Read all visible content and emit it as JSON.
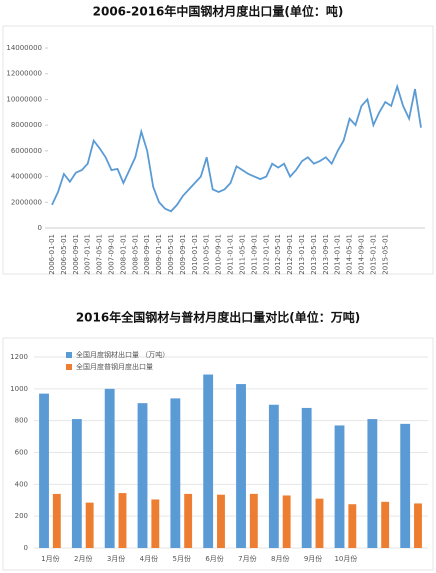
{
  "chart_data": [
    {
      "type": "line",
      "title": "2006-2016年中国钢材月度出口量(单位：吨)",
      "color": "#5b9bd5",
      "categories": [
        "2006-01-01",
        null,
        "2006-05-01",
        null,
        "2006-09-01",
        null,
        "2007-01-01",
        null,
        "2007-05-01",
        null,
        "2007-09-01",
        null,
        "2008-01-01",
        null,
        "2008-05-01",
        null,
        "2008-09-01",
        null,
        "2009-01-01",
        null,
        "2009-05-01",
        null,
        "2009-09-01",
        null,
        "2010-01-01",
        null,
        "2010-05-01",
        null,
        "2010-09-01",
        null,
        "2011-01-01",
        null,
        "2011-05-01",
        null,
        "2011-09-01",
        null,
        "2012-01-01",
        null,
        "2012-05-01",
        null,
        "2012-09-01",
        null,
        "2013-01-01",
        null,
        "2013-05-01",
        null,
        "2013-09-01",
        null,
        "2014-01-01",
        null,
        "2014-05-01",
        null,
        "2014-09-01",
        null,
        "2015-01-01",
        null,
        "2015-05-01",
        null,
        null,
        null,
        null,
        null,
        null
      ],
      "values": [
        1800000,
        2800000,
        4200000,
        3600000,
        4300000,
        4500000,
        5000000,
        6800000,
        6200000,
        5500000,
        4500000,
        4600000,
        3500000,
        4500000,
        5500000,
        7500000,
        6000000,
        3200000,
        2000000,
        1500000,
        1300000,
        1800000,
        2500000,
        3000000,
        3500000,
        4000000,
        5500000,
        3000000,
        2800000,
        3000000,
        3500000,
        4800000,
        4500000,
        4200000,
        4000000,
        3800000,
        4000000,
        5000000,
        4700000,
        5000000,
        4000000,
        4500000,
        5200000,
        5500000,
        5000000,
        5200000,
        5500000,
        5000000,
        6000000,
        6800000,
        8500000,
        8000000,
        9500000,
        10000000,
        8000000,
        9000000,
        9800000,
        9500000,
        11000000,
        9500000,
        8500000,
        10800000,
        7800000
      ],
      "ylim": [
        0,
        14000000
      ],
      "yticks": [
        0,
        2000000,
        4000000,
        6000000,
        8000000,
        10000000,
        12000000,
        14000000
      ],
      "grid": false
    },
    {
      "type": "bar",
      "title": "2016年全国钢材与普材月度出口量对比(单位：万吨)",
      "categories": [
        "1月份",
        "2月份",
        "3月份",
        "4月份",
        "5月份",
        "6月份",
        "7月份",
        "8月份",
        "9月份",
        "10月份",
        null,
        null
      ],
      "series": [
        {
          "name": "全国月度钢材出口量 （万吨）",
          "color": "#5b9bd5",
          "values": [
            970,
            810,
            1000,
            910,
            940,
            1090,
            1030,
            900,
            880,
            770,
            810,
            780
          ]
        },
        {
          "name": "全国月度普钢月度出口量",
          "color": "#ed7d31",
          "values": [
            340,
            285,
            345,
            305,
            340,
            335,
            340,
            330,
            310,
            275,
            290,
            280
          ]
        }
      ],
      "ylim": [
        0,
        1200
      ],
      "yticks": [
        0,
        200,
        400,
        600,
        800,
        1000,
        1200
      ],
      "grid": true,
      "legend": "top-left"
    }
  ]
}
